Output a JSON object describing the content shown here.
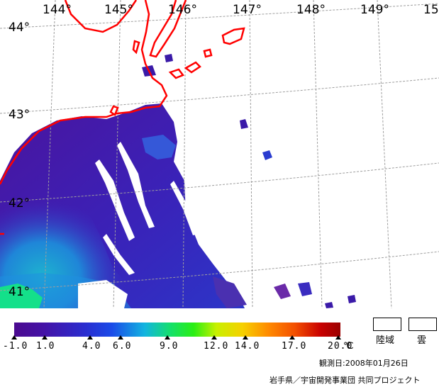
{
  "map": {
    "lon_labels": [
      "144°",
      "145°",
      "146°",
      "147°",
      "148°",
      "149°",
      "15"
    ],
    "lat_labels": [
      "44°",
      "43°",
      "42°",
      "41°"
    ],
    "coast_color": "#ff0000",
    "grid_color": "#9e9e9e"
  },
  "colorbar": {
    "ticks": [
      "-1.0",
      "1.0",
      "4.0",
      "6.0",
      "9.0",
      "12.0",
      "14.0",
      "17.0",
      "20.0"
    ],
    "unit": "℃",
    "min": -1.0,
    "max": 20.0
  },
  "legend": {
    "land_label": "陸域",
    "cloud_label": "雲"
  },
  "observation_date": "観測日:2008年01月26日",
  "credit": "岩手県／宇宙開発事業団 共同プロジェクト"
}
